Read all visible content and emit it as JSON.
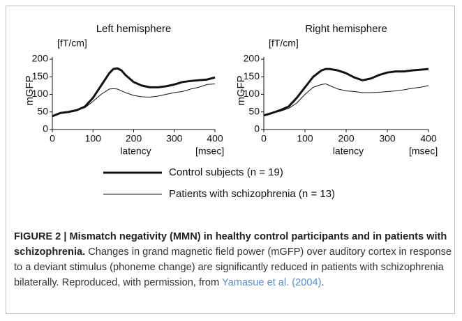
{
  "chart_data": [
    {
      "type": "line",
      "title": "Left hemisphere",
      "unit_label": "[fT/cm]",
      "ylabel": "mGFP",
      "xlabel": "latency",
      "xunit_label": "[msec]",
      "xlim": [
        0,
        400
      ],
      "xticks": [
        0,
        100,
        200,
        300,
        400
      ],
      "ylim": [
        0,
        200
      ],
      "yticks": [
        0,
        50,
        100,
        150,
        200
      ],
      "x": [
        0,
        20,
        40,
        60,
        80,
        100,
        120,
        140,
        150,
        160,
        170,
        180,
        200,
        220,
        240,
        260,
        280,
        300,
        320,
        340,
        360,
        380,
        400
      ],
      "series": [
        {
          "name": "Control subjects (n = 19)",
          "color": "#111111",
          "width": 3,
          "values": [
            38,
            47,
            50,
            55,
            65,
            90,
            125,
            160,
            172,
            174,
            168,
            155,
            135,
            125,
            120,
            120,
            123,
            128,
            135,
            138,
            140,
            142,
            148
          ]
        },
        {
          "name": "Patients with schizophrenia (n = 13)",
          "color": "#111111",
          "width": 1,
          "values": [
            40,
            46,
            50,
            55,
            62,
            80,
            100,
            115,
            116,
            115,
            110,
            105,
            97,
            93,
            92,
            95,
            100,
            105,
            108,
            115,
            120,
            128,
            130
          ]
        }
      ]
    },
    {
      "type": "line",
      "title": "Right  hemisphere",
      "unit_label": "[fT/cm]",
      "ylabel": "mGFP",
      "xlabel": "latency",
      "xunit_label": "[msec]",
      "xlim": [
        0,
        400
      ],
      "xticks": [
        0,
        100,
        200,
        300,
        400
      ],
      "ylim": [
        0,
        200
      ],
      "yticks": [
        0,
        50,
        100,
        150,
        200
      ],
      "x": [
        0,
        20,
        40,
        60,
        80,
        100,
        120,
        140,
        150,
        160,
        170,
        180,
        200,
        220,
        240,
        260,
        280,
        300,
        320,
        340,
        360,
        380,
        400
      ],
      "series": [
        {
          "color": "#111111",
          "width": 3,
          "values": [
            40,
            47,
            55,
            65,
            90,
            120,
            150,
            168,
            172,
            172,
            170,
            168,
            160,
            148,
            140,
            145,
            155,
            162,
            165,
            165,
            168,
            170,
            172
          ]
        },
        {
          "color": "#111111",
          "width": 1,
          "values": [
            40,
            47,
            52,
            60,
            75,
            100,
            120,
            128,
            130,
            125,
            120,
            115,
            110,
            108,
            105,
            105,
            106,
            108,
            110,
            113,
            117,
            120,
            125
          ]
        }
      ]
    }
  ],
  "caption": {
    "title": "FIGURE 2 | Mismatch negativity (MMN) in healthy control participants and in patients with schizophrenia.",
    "text": "Changes in grand magnetic field power (mGFP) over auditory cortex in response to a deviant stimulus (phoneme change) are significantly reduced in patients with schizophrenia bilaterally. Reproduced, with permission, from",
    "source": "Yamasue et al. (2004)",
    "end": "."
  }
}
